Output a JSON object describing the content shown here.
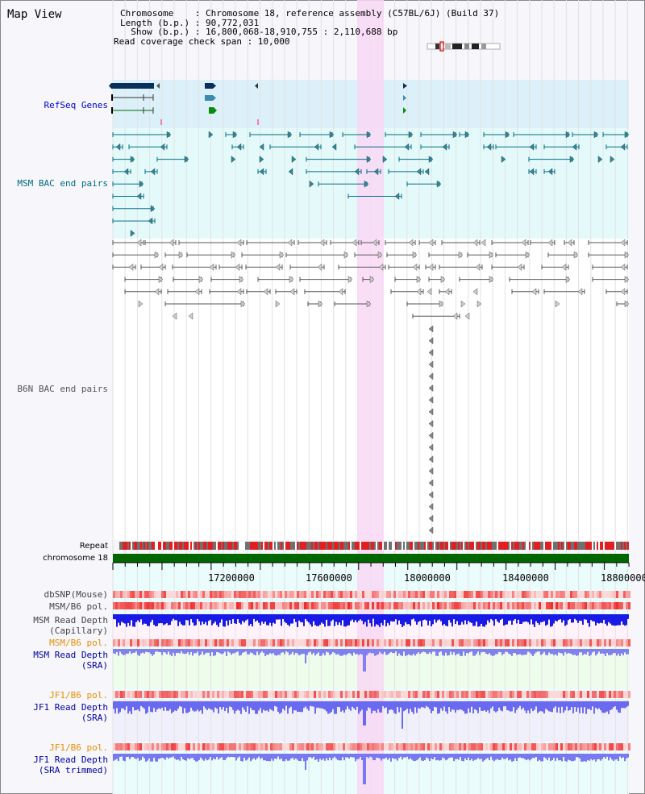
{
  "title": "Map View",
  "info": {
    "line1": "Chromosome    : Chromosome 18, reference assembly (C57BL/6J) (Build 37)",
    "line2": "Length (b.p.) : 90,772,031",
    "line3": "  Show (b.p.) : 16,800,068-18,910,755 : 2,110,688 bp",
    "line4": "Read coverage check span : 10,000"
  },
  "tracks": {
    "refseq": "RefSeq Genes",
    "msm_bac": "MSM BAC end pairs",
    "b6n_bac": "B6N BAC end pairs",
    "repeat": "Repeat",
    "chromosome": "chromosome 18",
    "dbsnp": "dbSNP(Mouse)",
    "msm_b6_pol": "MSM/B6 pol.",
    "msm_depth_cap_1": "MSM Read Depth",
    "msm_depth_cap_2": "(Capillary)",
    "msm_b6_pol2": "MSM/B6 pol.",
    "msm_depth_sra_1": "MSM Read Depth",
    "msm_depth_sra_2": "(SRA)",
    "jf1_pol": "JF1/B6 pol.",
    "jf1_depth_1": "JF1 Read Depth",
    "jf1_depth_2": "(SRA)",
    "jf1_pol2": "JF1/B6 pol.",
    "jf1_trim_1": "JF1 Read Depth",
    "jf1_trim_2": "(SRA trimmed)"
  },
  "axis": {
    "ticks": [
      "17200000",
      "17600000",
      "18000000",
      "18400000",
      "18800000"
    ]
  },
  "colors": {
    "refseq_bg": "#dcf0fa",
    "msm_bg": "#e4fafa",
    "highlight": "#f8d8f4",
    "chromosome": "#006600",
    "depth_dark": "#1414e6",
    "depth_light": "#7878f0"
  }
}
